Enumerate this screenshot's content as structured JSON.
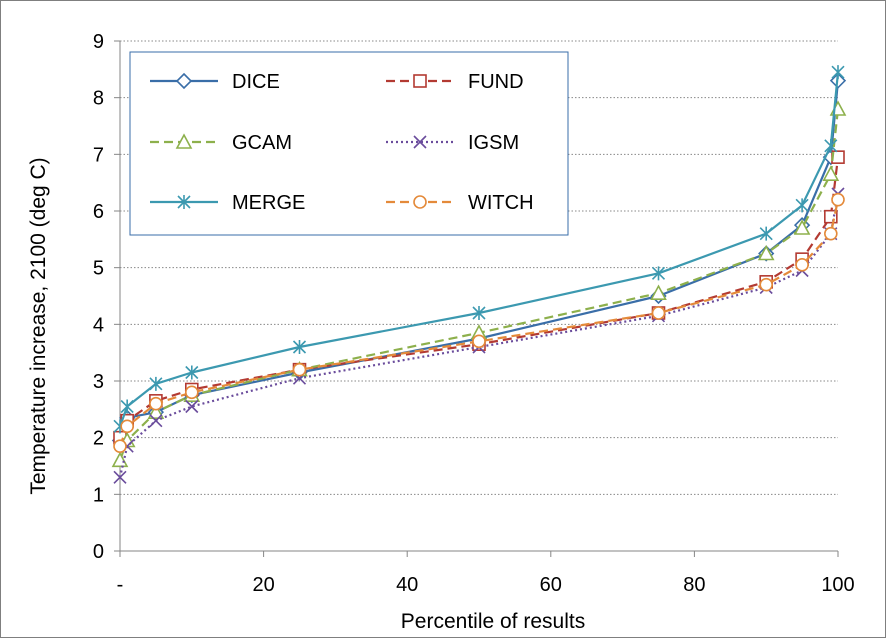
{
  "chart_data": {
    "type": "line",
    "title": "",
    "xlabel": "Percentile of results",
    "ylabel": "Temperature increase, 2100 (deg C)",
    "xlim": [
      0,
      100
    ],
    "ylim": [
      0,
      9
    ],
    "x_ticks": [
      {
        "value": 0,
        "label": "-"
      },
      {
        "value": 20,
        "label": "20"
      },
      {
        "value": 40,
        "label": "40"
      },
      {
        "value": 60,
        "label": "60"
      },
      {
        "value": 80,
        "label": "80"
      },
      {
        "value": 100,
        "label": "100"
      }
    ],
    "y_ticks": [
      0,
      1,
      2,
      3,
      4,
      5,
      6,
      7,
      8,
      9
    ],
    "grid": "horizontal dotted",
    "legend_position": "top-left inside plot",
    "x": [
      0,
      1,
      5,
      10,
      25,
      50,
      75,
      90,
      95,
      99,
      100
    ],
    "series": [
      {
        "name": "DICE",
        "color": "#3a6ea8",
        "dash": "solid",
        "marker": "diamond",
        "values": [
          1.95,
          2.35,
          2.45,
          2.75,
          3.15,
          3.75,
          4.5,
          5.25,
          5.75,
          6.95,
          8.3
        ]
      },
      {
        "name": "FUND",
        "color": "#b33a32",
        "dash": "dashed",
        "marker": "square",
        "values": [
          2.0,
          2.3,
          2.65,
          2.85,
          3.2,
          3.65,
          4.2,
          4.75,
          5.15,
          5.9,
          6.95
        ]
      },
      {
        "name": "GCAM",
        "color": "#8db04c",
        "dash": "dashed",
        "marker": "triangle",
        "values": [
          1.6,
          1.95,
          2.45,
          2.75,
          3.2,
          3.85,
          4.55,
          5.25,
          5.7,
          6.65,
          7.8
        ]
      },
      {
        "name": "IGSM",
        "color": "#6a4c9c",
        "dash": "dotted",
        "marker": "x",
        "values": [
          1.3,
          1.85,
          2.3,
          2.55,
          3.05,
          3.6,
          4.15,
          4.65,
          4.95,
          5.6,
          6.3
        ]
      },
      {
        "name": "MERGE",
        "color": "#3c99b0",
        "dash": "solid",
        "marker": "star",
        "values": [
          2.2,
          2.55,
          2.95,
          3.15,
          3.6,
          4.2,
          4.9,
          5.6,
          6.1,
          7.15,
          8.45
        ]
      },
      {
        "name": "WITCH",
        "color": "#e48a3a",
        "dash": "dashed",
        "marker": "circle",
        "values": [
          1.85,
          2.2,
          2.6,
          2.8,
          3.2,
          3.7,
          4.2,
          4.7,
          5.05,
          5.6,
          6.2
        ]
      }
    ]
  }
}
